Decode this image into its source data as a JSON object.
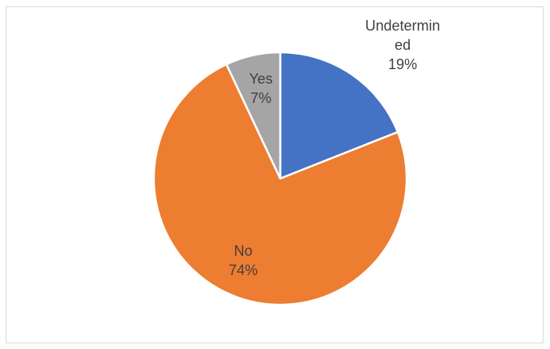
{
  "chart_data": {
    "type": "pie",
    "title": "",
    "categories": [
      "Undetermined",
      "No",
      "Yes"
    ],
    "values": [
      19,
      74,
      7
    ],
    "value_format": "percent",
    "colors": [
      "#4472c4",
      "#ed7d31",
      "#a5a5a5"
    ],
    "data_labels": [
      {
        "category_lines": [
          "Undetermin",
          "ed"
        ],
        "value_label": "19%"
      },
      {
        "category_lines": [
          "No"
        ],
        "value_label": "74%"
      },
      {
        "category_lines": [
          "Yes"
        ],
        "value_label": "7%"
      }
    ],
    "start_angle_deg": 0,
    "direction": "clockwise",
    "legend": "none"
  }
}
